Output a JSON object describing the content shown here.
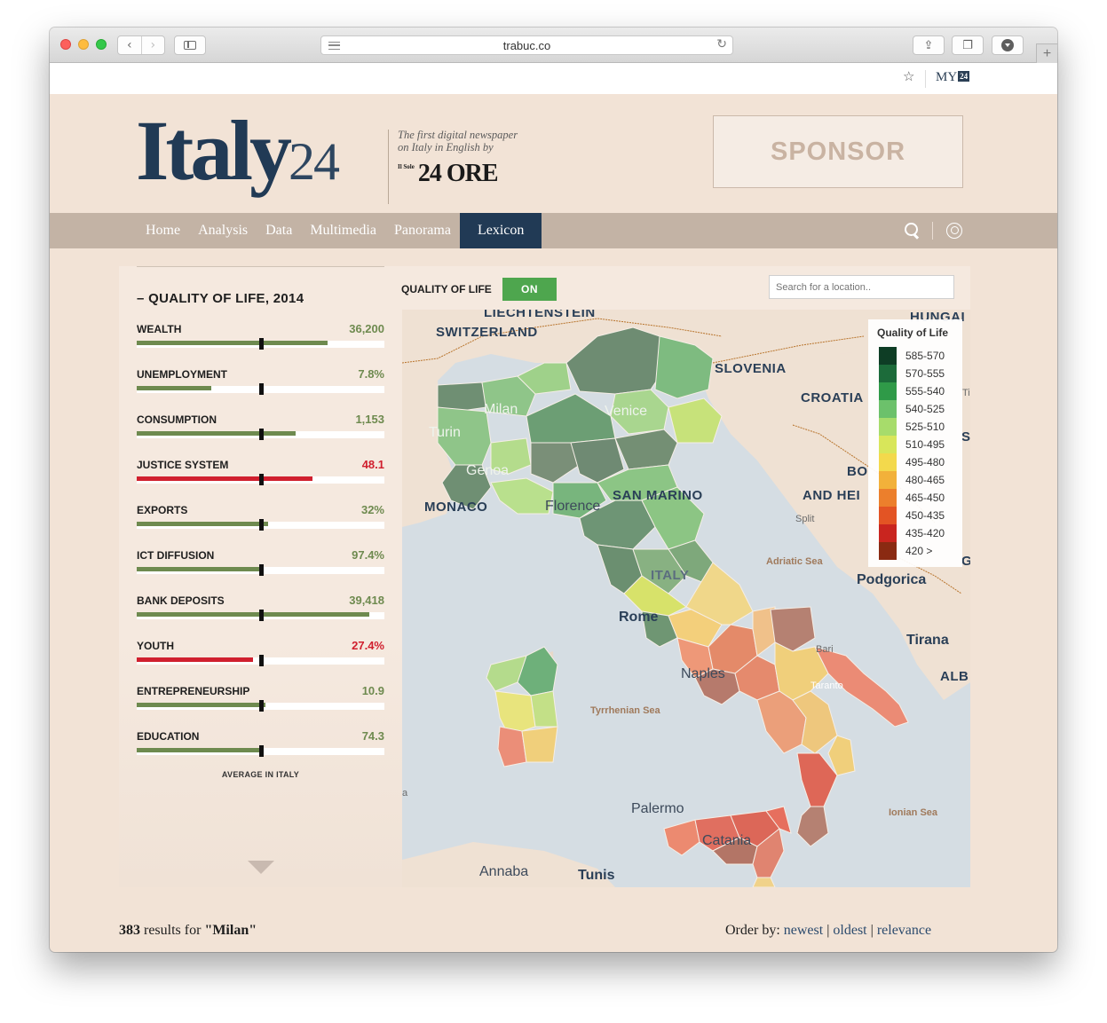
{
  "browser": {
    "url": "trabuc.co",
    "back_glyph": "‹",
    "forward_glyph": "›",
    "reload_glyph": "↻",
    "share_glyph": "⇪",
    "tabs_glyph": "❐",
    "newtab_glyph": "+"
  },
  "util": {
    "star_glyph": "☆",
    "my_label": "MY",
    "my_badge": "24"
  },
  "header": {
    "logo_main": "Italy",
    "logo_num": "24",
    "tagline_1": "The first digital newspaper",
    "tagline_2": "on Italy in English by",
    "sole_small": "Il Sole",
    "sole_big": "24 ORE",
    "sponsor": "SPONSOR"
  },
  "nav": {
    "items": [
      "Home",
      "Analysis",
      "Data",
      "Multimedia",
      "Panorama"
    ],
    "active": "Lexicon"
  },
  "panel": {
    "title": "– QUALITY OF LIFE, 2014",
    "avg_label": "AVERAGE IN ITALY",
    "indicators": [
      {
        "name": "WEALTH",
        "value": "36,200",
        "fill": 0.77,
        "status": "good"
      },
      {
        "name": "UNEMPLOYMENT",
        "value": "7.8%",
        "fill": 0.3,
        "status": "good"
      },
      {
        "name": "CONSUMPTION",
        "value": "1,153",
        "fill": 0.64,
        "status": "good"
      },
      {
        "name": "JUSTICE SYSTEM",
        "value": "48.1",
        "fill": 0.71,
        "status": "bad"
      },
      {
        "name": "EXPORTS",
        "value": "32%",
        "fill": 0.53,
        "status": "good"
      },
      {
        "name": "ICT DIFFUSION",
        "value": "97.4%",
        "fill": 0.51,
        "status": "good"
      },
      {
        "name": "BANK DEPOSITS",
        "value": "39,418",
        "fill": 0.94,
        "status": "good"
      },
      {
        "name": "YOUTH",
        "value": "27.4%",
        "fill": 0.47,
        "status": "bad"
      },
      {
        "name": "ENTREPRENEURSHIP",
        "value": "10.9",
        "fill": 0.52,
        "status": "good"
      },
      {
        "name": "EDUCATION",
        "value": "74.3",
        "fill": 0.51,
        "status": "good"
      }
    ],
    "average_marker": 0.5,
    "colors": {
      "good": "#6e8a4f",
      "bad": "#d01f2e",
      "good_text": "#6e8a4f",
      "bad_text": "#d01f2e"
    }
  },
  "map": {
    "toggle_label": "QUALITY OF LIFE",
    "toggle_state": "ON",
    "search_placeholder": "Search for a location..",
    "legend_title": "Quality of Life",
    "legend": [
      {
        "label": "585-570",
        "color": "#0e3d25"
      },
      {
        "label": "570-555",
        "color": "#1c6b3a"
      },
      {
        "label": "555-540",
        "color": "#2f9a48"
      },
      {
        "label": "540-525",
        "color": "#6cc16b"
      },
      {
        "label": "525-510",
        "color": "#a7dc6b"
      },
      {
        "label": "510-495",
        "color": "#d8e65a"
      },
      {
        "label": "495-480",
        "color": "#f3d94c"
      },
      {
        "label": "480-465",
        "color": "#f2b13a"
      },
      {
        "label": "465-450",
        "color": "#ec7f2c"
      },
      {
        "label": "450-435",
        "color": "#e35424"
      },
      {
        "label": "435-420",
        "color": "#c9251f"
      },
      {
        "label": "420 >",
        "color": "#8a2a12"
      }
    ],
    "labels": {
      "liechtenstein": "LIECHTENSTEIN",
      "switzerland": "SWITZERLAND",
      "hungary": "HUNGAI",
      "slovenia": "SLOVENIA",
      "croatia": "CROATIA",
      "milan": "Milan",
      "venice": "Venice",
      "turin": "Turin",
      "genoa": "Genoa",
      "monaco": "MONACO",
      "florence": "Florence",
      "san_marino": "SAN MARINO",
      "bosnia_1": "BO",
      "bosnia_2": "AND HEI",
      "split": "Split",
      "adriatic": "Adriatic Sea",
      "italy": "ITALY",
      "podgorica": "Podgorica",
      "rome": "Rome",
      "tirana": "Tirana",
      "bari": "Bari",
      "albania": "ALB",
      "naples": "Naples",
      "taranto": "Taranto",
      "tyrrhenian": "Tyrrhenian Sea",
      "ionian": "Ionian Sea",
      "palermo": "Palermo",
      "catania": "Catania",
      "annaba": "Annaba",
      "tunis": "Tunis",
      "edge_ti": "Ti",
      "edge_se": "Se",
      "edge_g": "G",
      "edge_a": "a"
    }
  },
  "results": {
    "count": "383",
    "text": "results for",
    "query": "\"Milan\"",
    "order_label": "Order by:",
    "order_newest": "newest",
    "order_oldest": "oldest",
    "order_relevance": "relevance",
    "sep": "|"
  }
}
